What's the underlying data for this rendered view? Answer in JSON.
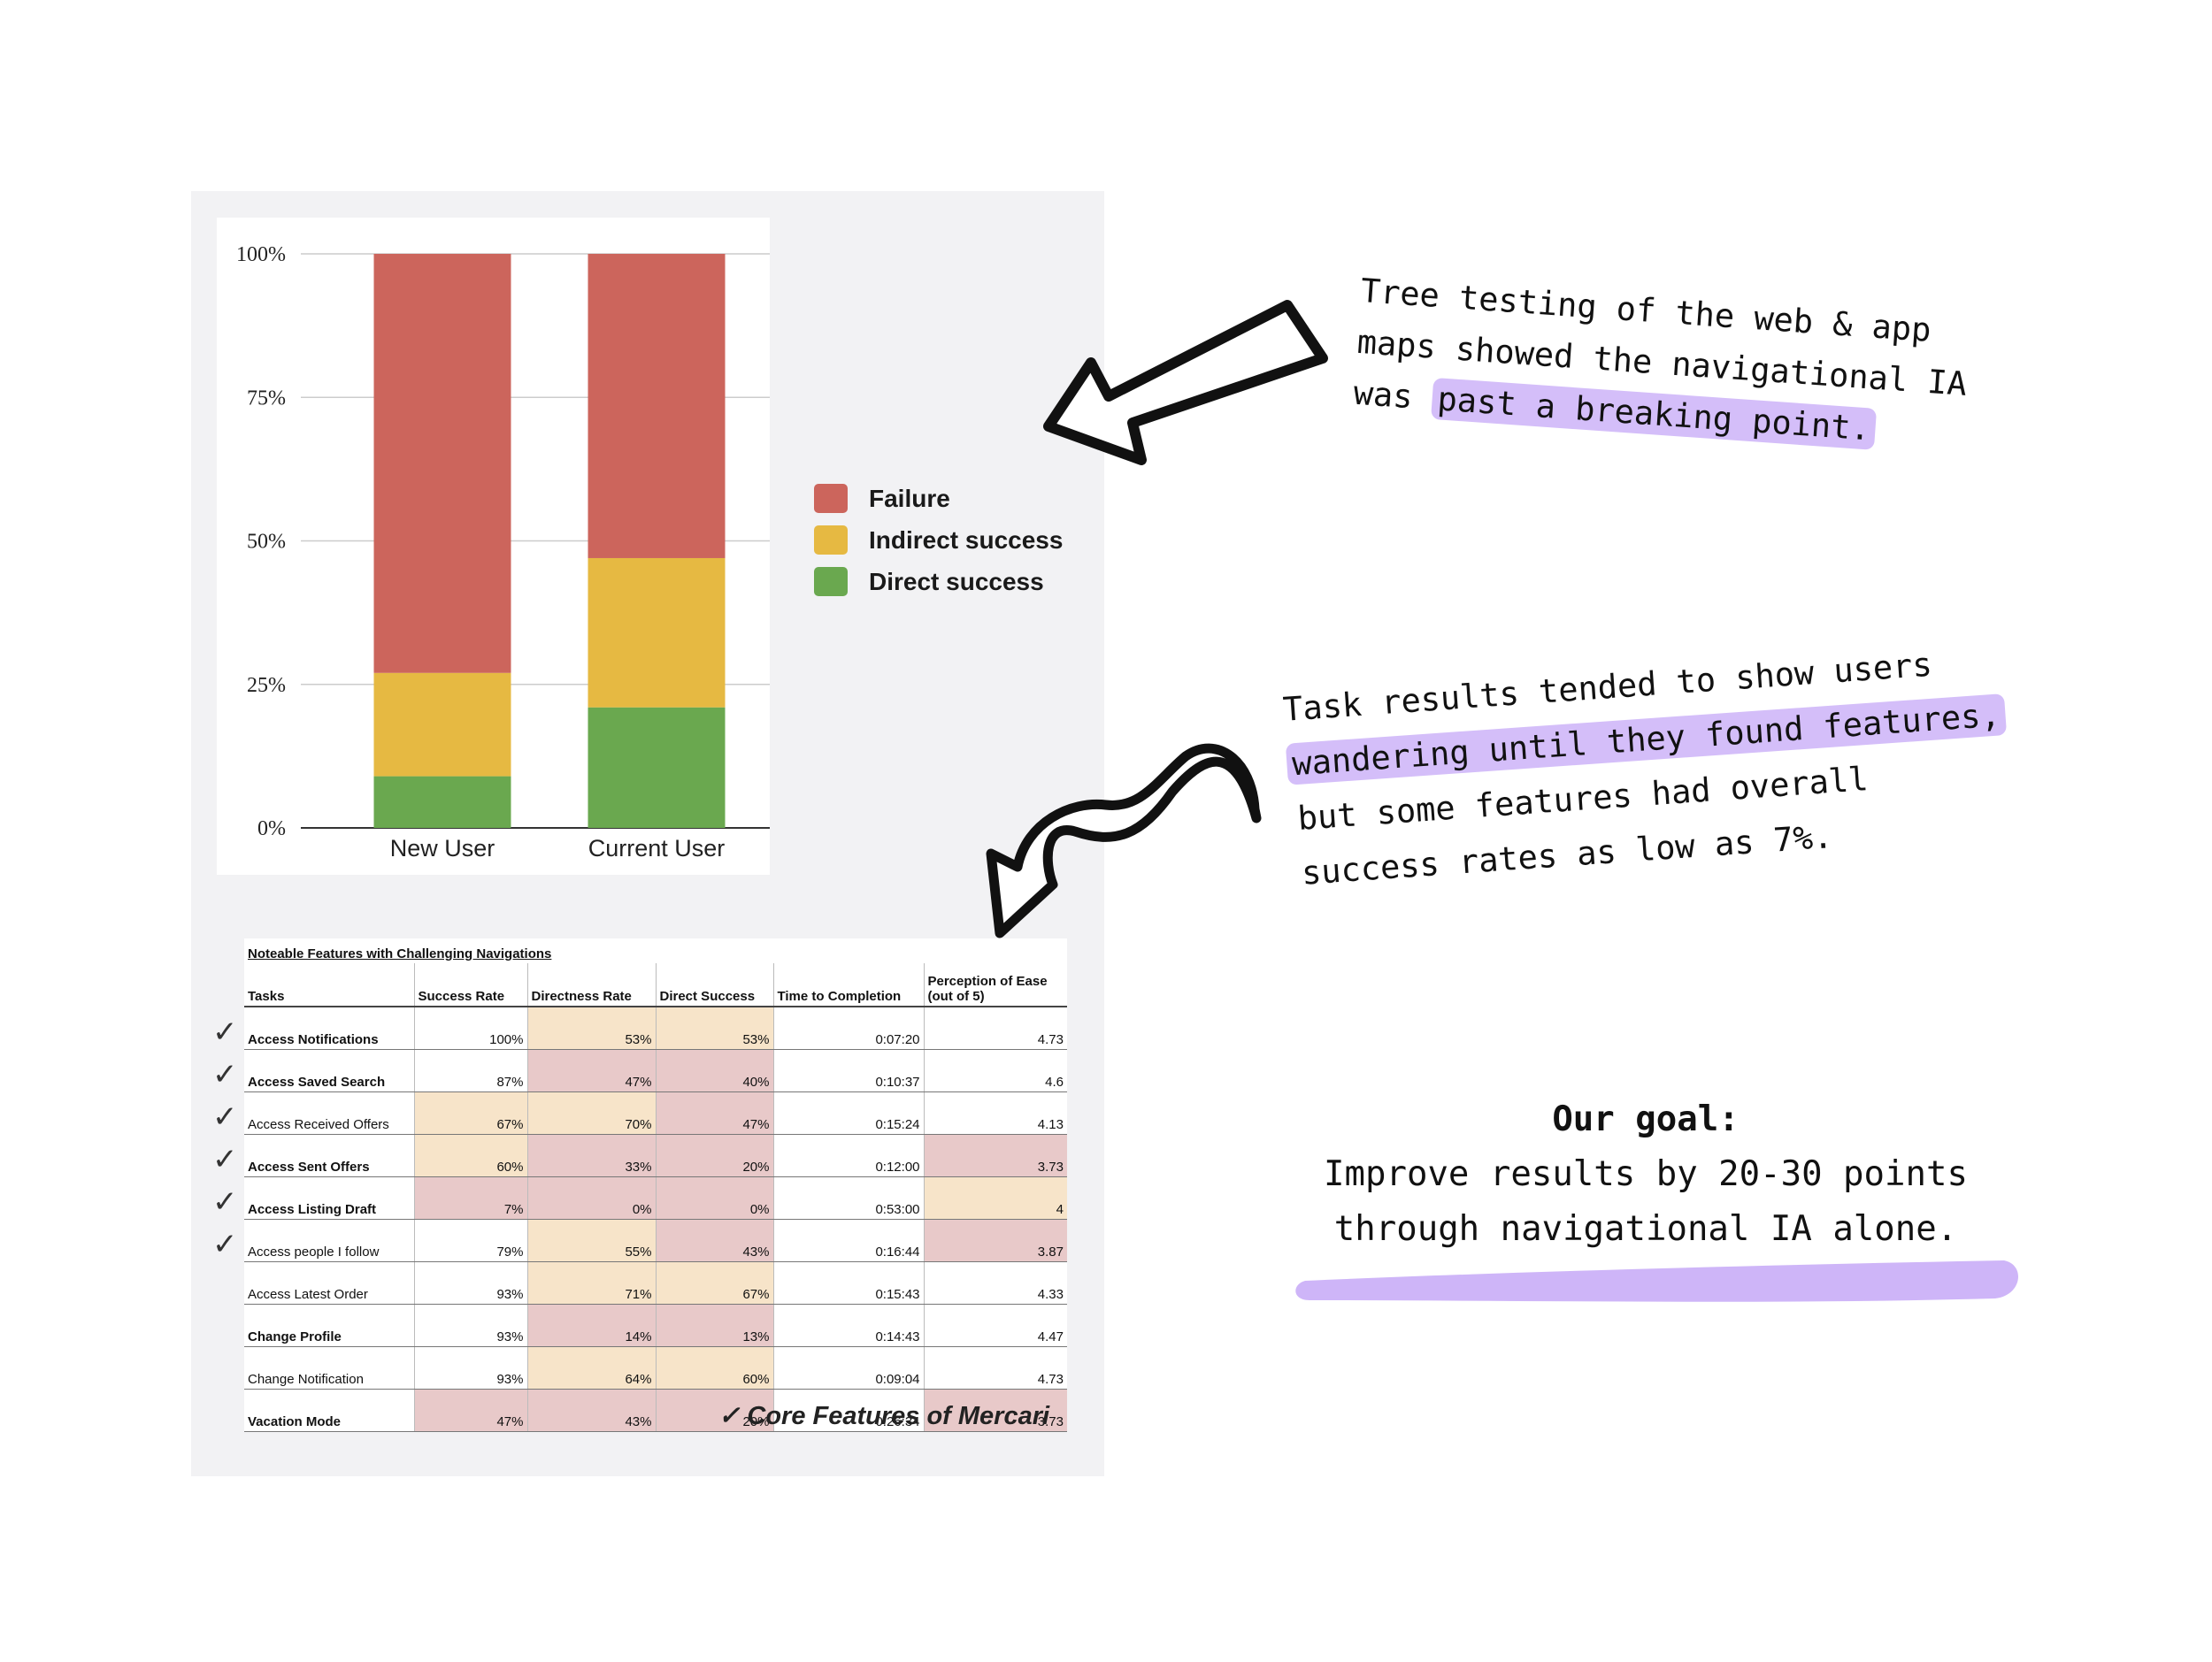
{
  "chart_data": {
    "type": "bar",
    "stacked": true,
    "categories": [
      "New User",
      "Current User"
    ],
    "series": [
      {
        "name": "Direct success",
        "values": [
          9,
          21
        ],
        "color": "#6aa84f"
      },
      {
        "name": "Indirect success",
        "values": [
          18,
          26
        ],
        "color": "#e6b942"
      },
      {
        "name": "Failure",
        "values": [
          73,
          53
        ],
        "color": "#cc655c"
      }
    ],
    "y_ticks": [
      "0%",
      "25%",
      "50%",
      "75%",
      "100%"
    ],
    "ylim": [
      0,
      100
    ],
    "grid": true,
    "legend_position": "right"
  },
  "legend": [
    {
      "label": "Failure",
      "color": "#cc655c"
    },
    {
      "label": "Indirect success",
      "color": "#e6b942"
    },
    {
      "label": "Direct success",
      "color": "#6aa84f"
    }
  ],
  "table": {
    "caption": "Noteable Features with Challenging Navigations",
    "headers": [
      "Tasks",
      "Success Rate",
      "Directness Rate",
      "Direct Success",
      "Time to Completion",
      "Perception of Ease (out of 5)"
    ],
    "rows": [
      {
        "task": "Access Notifications",
        "bold": true,
        "core": true,
        "cells": [
          "100%",
          "53%",
          "53%",
          "0:07:20",
          "4.73"
        ],
        "shade": [
          "",
          "tan",
          "tan",
          "",
          ""
        ]
      },
      {
        "task": "Access Saved Search",
        "bold": true,
        "core": true,
        "cells": [
          "87%",
          "47%",
          "40%",
          "0:10:37",
          "4.6"
        ],
        "shade": [
          "",
          "pink",
          "pink",
          "",
          ""
        ]
      },
      {
        "task": "Access Received Offers",
        "bold": false,
        "core": true,
        "cells": [
          "67%",
          "70%",
          "47%",
          "0:15:24",
          "4.13"
        ],
        "shade": [
          "tan",
          "tan",
          "pink",
          "",
          ""
        ]
      },
      {
        "task": "Access Sent Offers",
        "bold": true,
        "core": true,
        "cells": [
          "60%",
          "33%",
          "20%",
          "0:12:00",
          "3.73"
        ],
        "shade": [
          "tan",
          "pink",
          "pink",
          "",
          "pink"
        ]
      },
      {
        "task": "Access Listing Draft",
        "bold": true,
        "core": true,
        "cells": [
          "7%",
          "0%",
          "0%",
          "0:53:00",
          "4"
        ],
        "shade": [
          "pink",
          "pink",
          "pink",
          "",
          "tan"
        ]
      },
      {
        "task": "Access people I follow",
        "bold": false,
        "core": true,
        "cells": [
          "79%",
          "55%",
          "43%",
          "0:16:44",
          "3.87"
        ],
        "shade": [
          "",
          "tan",
          "pink",
          "",
          "pink"
        ]
      },
      {
        "task": "Access Latest Order",
        "bold": false,
        "core": false,
        "cells": [
          "93%",
          "71%",
          "67%",
          "0:15:43",
          "4.33"
        ],
        "shade": [
          "",
          "tan",
          "tan",
          "",
          ""
        ]
      },
      {
        "task": "Change Profile",
        "bold": true,
        "core": false,
        "cells": [
          "93%",
          "14%",
          "13%",
          "0:14:43",
          "4.47"
        ],
        "shade": [
          "",
          "pink",
          "pink",
          "",
          ""
        ]
      },
      {
        "task": "Change Notification",
        "bold": false,
        "core": false,
        "cells": [
          "93%",
          "64%",
          "60%",
          "0:09:04",
          "4.73"
        ],
        "shade": [
          "",
          "tan",
          "tan",
          "",
          ""
        ]
      },
      {
        "task": "Vacation Mode",
        "bold": true,
        "core": false,
        "cells": [
          "47%",
          "43%",
          "20%",
          "0:26:34",
          "3.73"
        ],
        "shade": [
          "pink",
          "pink",
          "pink",
          "",
          "pink"
        ]
      }
    ],
    "core_note": "Core Features of Mercari",
    "check_mark": "✓"
  },
  "notes": {
    "note1": {
      "lines": [
        "Tree testing of the web & app",
        "maps showed the navigational IA"
      ],
      "line3_pre": "was ",
      "line3_hl": "past a breaking point."
    },
    "note2": {
      "line1": "Task results tended to show users",
      "line2_hl": "wandering until they found features,",
      "line3": "but some features had overall",
      "line4": "success rates as low as 7%."
    },
    "goal": {
      "title": "Our goal:",
      "line1": "Improve results by 20-30 points",
      "line2": "through navigational IA alone."
    }
  },
  "colors": {
    "highlight": "#c5a8f7",
    "panel": "#f2f2f4"
  }
}
